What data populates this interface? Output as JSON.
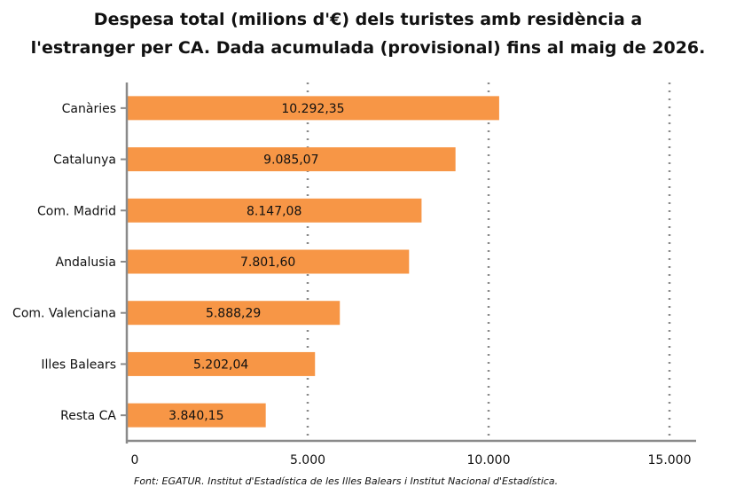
{
  "chart_data": {
    "type": "bar",
    "orientation": "horizontal",
    "title": "Despesa total (milions d'€) dels turistes amb residència a l'estranger per CA. Dada acumulada (provisional) fins al maig de 2026.",
    "title_lines": [
      "Despesa total (milions d'€) dels turistes amb residència a",
      "l'estranger per CA. Dada acumulada (provisional) fins al maig de 2026."
    ],
    "categories": [
      "Canàries",
      "Catalunya",
      "Com. Madrid",
      "Andalusia",
      "Com. Valenciana",
      "Illes Balears",
      "Resta CA"
    ],
    "values": [
      10292.35,
      9085.07,
      8147.08,
      7801.6,
      5888.29,
      5202.04,
      3840.15
    ],
    "value_labels": [
      "10.292,35",
      "9.085,07",
      "8.147,08",
      "7.801,60",
      "5.888,29",
      "5.202,04",
      "3.840,15"
    ],
    "x_ticks": [
      0,
      5000,
      10000,
      15000
    ],
    "x_tick_labels": [
      "0",
      "5.000",
      "10.000",
      "15.000"
    ],
    "xlim": [
      0,
      15500
    ],
    "xlabel": "",
    "ylabel": "",
    "grid": "vertical dotted",
    "legend": "none",
    "bar_color": "#f79646",
    "source": "Font: EGATUR. Institut d'Estadística de les Illes Balears i Institut Nacional d'Estadística."
  }
}
